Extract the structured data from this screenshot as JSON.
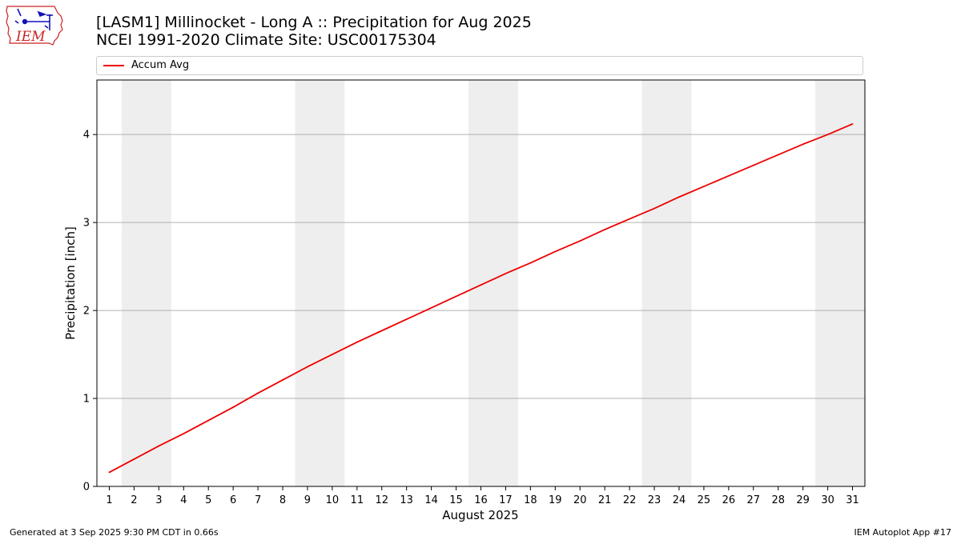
{
  "header": {
    "title_line1": "[LASM1] Millinocket - Long A :: Precipitation for Aug 2025",
    "title_line2": "NCEI 1991-2020 Climate Site: USC00175304"
  },
  "logo": {
    "text": "IEM",
    "icon": "iem-iowa-logo"
  },
  "footer": {
    "left": "Generated at 3 Sep 2025 9:30 PM CDT in 0.66s",
    "right": "IEM Autoplot App #17"
  },
  "chart_data": {
    "type": "line",
    "xlabel": "August 2025",
    "ylabel": "Precipitation [inch]",
    "x": [
      1,
      2,
      3,
      4,
      5,
      6,
      7,
      8,
      9,
      10,
      11,
      12,
      13,
      14,
      15,
      16,
      17,
      18,
      19,
      20,
      21,
      22,
      23,
      24,
      25,
      26,
      27,
      28,
      29,
      30,
      31
    ],
    "xticks": [
      "1",
      "2",
      "3",
      "4",
      "5",
      "6",
      "7",
      "8",
      "9",
      "10",
      "11",
      "12",
      "13",
      "14",
      "15",
      "16",
      "17",
      "18",
      "19",
      "20",
      "21",
      "22",
      "23",
      "24",
      "25",
      "26",
      "27",
      "28",
      "29",
      "30",
      "31"
    ],
    "xlim": [
      0.5,
      31.5
    ],
    "ylim": [
      0,
      4.62
    ],
    "yticks": [
      0,
      1,
      2,
      3,
      4
    ],
    "grid": "horizontal",
    "legend": "top",
    "weekend_shading": [
      [
        1.5,
        3.5
      ],
      [
        8.5,
        10.5
      ],
      [
        15.5,
        17.5
      ],
      [
        22.5,
        24.5
      ],
      [
        29.5,
        31.5
      ]
    ],
    "shading_color": "#eeeeee",
    "series": [
      {
        "name": "Accum Avg",
        "color": "#ee0000",
        "values": [
          0.16,
          0.31,
          0.46,
          0.6,
          0.75,
          0.9,
          1.06,
          1.21,
          1.36,
          1.5,
          1.64,
          1.77,
          1.9,
          2.03,
          2.16,
          2.29,
          2.42,
          2.54,
          2.67,
          2.79,
          2.92,
          3.04,
          3.16,
          3.29,
          3.41,
          3.53,
          3.65,
          3.77,
          3.89,
          4.0,
          4.12
        ]
      }
    ]
  }
}
